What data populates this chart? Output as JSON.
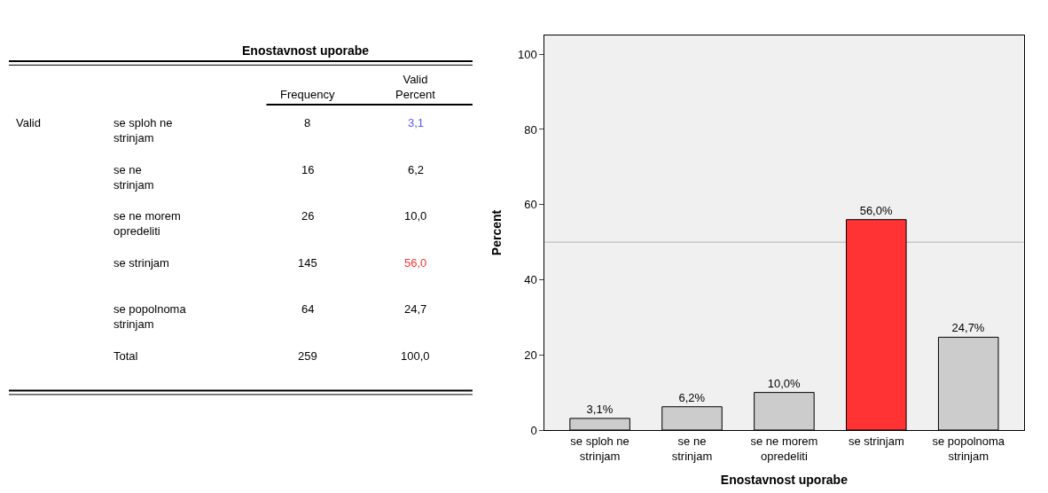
{
  "chart_data": [
    {
      "type": "other",
      "title": "Enostavnost uporabe",
      "annotations": [
        "Valid"
      ],
      "data_labels": true,
      "categories": [
        "se sploh ne strinjam",
        "se ne strinjam",
        "se ne morem opredeliti",
        "se strinjam",
        "se popolnoma strinjam",
        "Total"
      ],
      "series": [
        {
          "name": "Frequency",
          "values": [
            8,
            16,
            26,
            145,
            64,
            259
          ],
          "colors": [
            "#000000",
            "#000000",
            "#000000",
            "#000000",
            "#000000",
            "#000000"
          ]
        },
        {
          "name": "Valid Percent",
          "values": [
            3.1,
            6.2,
            10.0,
            56.0,
            24.7,
            100.0
          ],
          "value_labels": [
            "3,1",
            "6,2",
            "10,0",
            "56,0",
            "24,7",
            "100,0"
          ],
          "colors": [
            "#5a5aff",
            "#000000",
            "#000000",
            "#ff3333",
            "#000000",
            "#000000"
          ]
        }
      ]
    },
    {
      "type": "bar",
      "xlabel": "Enostavnost uporabe",
      "ylabel": "Percent",
      "categories": [
        "se sploh ne strinjam",
        "se ne strinjam",
        "se ne morem opredeliti",
        "se strinjam",
        "se popolnoma strinjam"
      ],
      "values": [
        3.1,
        6.2,
        10.0,
        56.0,
        24.7
      ],
      "value_labels": [
        "3,1%",
        "6,2%",
        "10,0%",
        "56,0%",
        "24,7%"
      ],
      "colors": [
        "#cccccc",
        "#cccccc",
        "#cccccc",
        "#ff3333",
        "#cccccc"
      ],
      "ylim": [
        0,
        105
      ],
      "yticks": [
        0,
        20,
        40,
        60,
        80,
        100
      ],
      "grid": false,
      "ref_lines": [
        {
          "axis": "y",
          "value": 50,
          "color": "#b4b4b4"
        }
      ]
    }
  ]
}
